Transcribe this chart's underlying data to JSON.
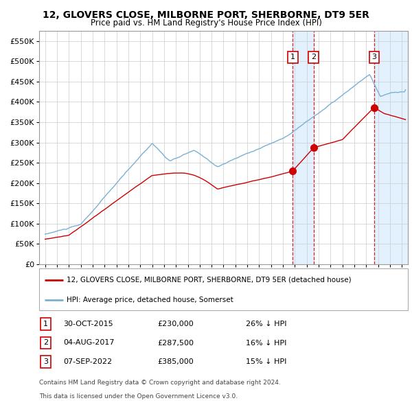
{
  "title": "12, GLOVERS CLOSE, MILBORNE PORT, SHERBORNE, DT9 5ER",
  "subtitle": "Price paid vs. HM Land Registry's House Price Index (HPI)",
  "legend_label_red": "12, GLOVERS CLOSE, MILBORNE PORT, SHERBORNE, DT9 5ER (detached house)",
  "legend_label_blue": "HPI: Average price, detached house, Somerset",
  "footer1": "Contains HM Land Registry data © Crown copyright and database right 2024.",
  "footer2": "This data is licensed under the Open Government Licence v3.0.",
  "transactions": [
    {
      "num": 1,
      "date": "30-OCT-2015",
      "price": 230000,
      "price_str": "£230,000",
      "pct": "26%",
      "dir": "↓",
      "x": 2015.83
    },
    {
      "num": 2,
      "date": "04-AUG-2017",
      "price": 287500,
      "price_str": "£287,500",
      "pct": "16%",
      "dir": "↓",
      "x": 2017.58
    },
    {
      "num": 3,
      "date": "07-SEP-2022",
      "price": 385000,
      "price_str": "£385,000",
      "pct": "15%",
      "dir": "↓",
      "x": 2022.67
    }
  ],
  "ylim": [
    0,
    575000
  ],
  "xlim": [
    1994.5,
    2025.5
  ],
  "background_color": "#ffffff",
  "plot_bg": "#ffffff",
  "grid_color": "#cccccc",
  "red_color": "#cc0000",
  "blue_color": "#7ab0d4",
  "shade_color": "#ddeeff",
  "yticks": [
    0,
    50000,
    100000,
    150000,
    200000,
    250000,
    300000,
    350000,
    400000,
    450000,
    500000,
    550000
  ],
  "ytick_labels": [
    "£0",
    "£50K",
    "£100K",
    "£150K",
    "£200K",
    "£250K",
    "£300K",
    "£350K",
    "£400K",
    "£450K",
    "£500K",
    "£550K"
  ]
}
